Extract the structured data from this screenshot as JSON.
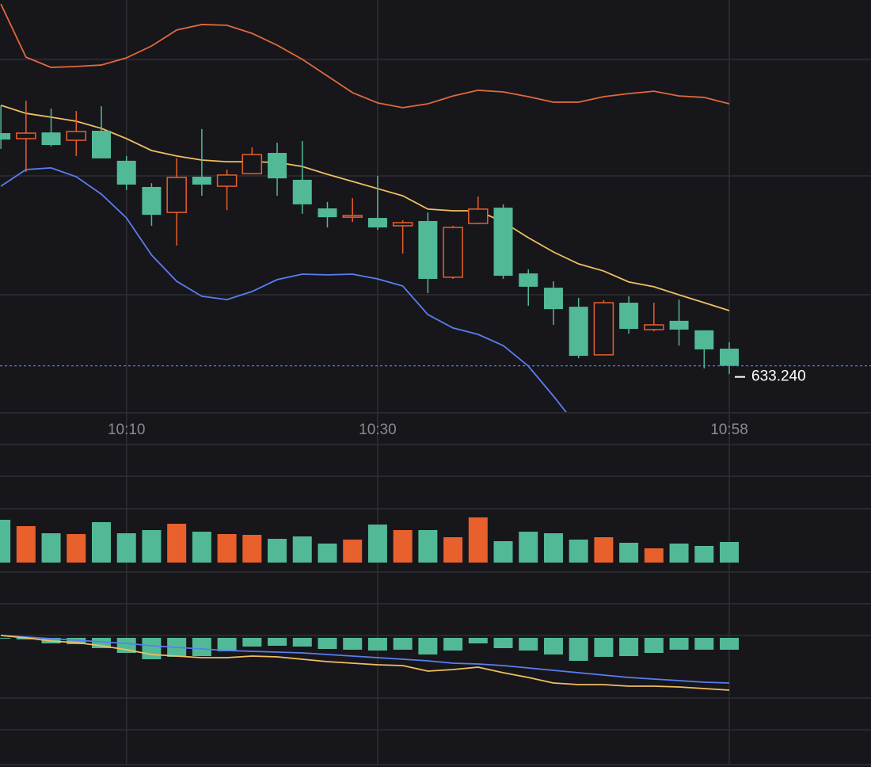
{
  "chart_data": [
    {
      "type": "candlestick",
      "categories": [
        null,
        null,
        null,
        null,
        null,
        "10:10",
        null,
        null,
        null,
        null,
        null,
        null,
        null,
        null,
        null,
        "10:30",
        null,
        null,
        null,
        null,
        null,
        null,
        null,
        null,
        null,
        null,
        null,
        null,
        null,
        "10:58"
      ],
      "open": [
        643.01,
        642.78,
        643.04,
        642.71,
        643.11,
        641.85,
        640.75,
        639.68,
        641.18,
        640.78,
        641.31,
        642.18,
        641.05,
        639.85,
        639.48,
        639.45,
        639.12,
        639.32,
        636.96,
        639.22,
        639.88,
        637.12,
        636.52,
        635.72,
        633.7,
        635.89,
        634.76,
        635.13,
        634.73,
        633.96
      ],
      "high": [
        644.17,
        644.37,
        644.04,
        643.94,
        644.14,
        642.05,
        640.91,
        641.95,
        643.18,
        641.48,
        642.41,
        642.61,
        642.68,
        640.12,
        640.28,
        641.21,
        639.35,
        639.68,
        639.12,
        640.35,
        640.02,
        637.29,
        636.79,
        636.09,
        635.99,
        636.16,
        635.89,
        636.02,
        634.73,
        634.23
      ],
      "low": [
        642.35,
        641.38,
        642.45,
        642.05,
        641.95,
        640.62,
        639.12,
        638.29,
        640.38,
        639.78,
        641.28,
        640.38,
        639.62,
        639.05,
        639.28,
        638.95,
        637.95,
        636.29,
        636.89,
        639.18,
        636.89,
        635.76,
        634.96,
        633.56,
        633.7,
        634.59,
        634.69,
        634.09,
        633.13,
        632.9
      ],
      "close": [
        642.74,
        643.01,
        642.51,
        643.08,
        641.95,
        640.85,
        639.58,
        641.15,
        640.85,
        641.25,
        642.11,
        641.11,
        640.02,
        639.48,
        639.55,
        639.05,
        639.25,
        636.89,
        639.05,
        639.82,
        637.02,
        636.56,
        635.62,
        633.66,
        635.89,
        634.79,
        634.96,
        634.76,
        633.93,
        633.24
      ],
      "up_color": "#e8602c",
      "down_color": "#52b996",
      "ylim": [
        631.3,
        648.6
      ],
      "series": [
        {
          "color": "#e0693c",
          "values": [
            648.43,
            646.2,
            645.77,
            645.81,
            645.87,
            646.17,
            646.67,
            647.34,
            647.57,
            647.54,
            647.2,
            646.7,
            646.11,
            645.41,
            644.71,
            644.28,
            644.08,
            644.24,
            644.57,
            644.81,
            644.74,
            644.54,
            644.31,
            644.31,
            644.54,
            644.67,
            644.77,
            644.57,
            644.51,
            644.24
          ]
        },
        {
          "color": "#efbf60",
          "values": [
            644.18,
            643.84,
            643.68,
            643.51,
            643.21,
            642.78,
            642.28,
            642.05,
            641.88,
            641.81,
            641.81,
            641.78,
            641.61,
            641.28,
            640.98,
            640.68,
            640.38,
            639.82,
            639.75,
            639.75,
            639.28,
            638.62,
            638.02,
            637.52,
            637.22,
            636.76,
            636.56,
            636.22,
            635.89,
            635.56
          ]
        },
        {
          "color": "#5a7ef0",
          "values": [
            640.78,
            641.48,
            641.55,
            641.18,
            640.45,
            639.45,
            637.89,
            636.79,
            636.16,
            636.02,
            636.36,
            636.86,
            637.09,
            637.06,
            637.09,
            636.89,
            636.59,
            635.39,
            634.83,
            634.56,
            634.09,
            633.23,
            631.97,
            630.63,
            null,
            null,
            null,
            null,
            null,
            null
          ]
        }
      ],
      "price_line": {
        "value": 633.24,
        "label": "633.240",
        "color": "#4a8cf0"
      },
      "grid": true
    },
    {
      "type": "volume",
      "values": [
        54,
        46,
        37,
        36,
        51,
        37,
        41,
        49,
        39,
        36,
        35,
        30,
        33,
        24,
        29,
        48,
        41,
        41,
        32,
        57,
        27,
        39,
        37,
        29,
        32,
        25,
        18,
        24,
        21,
        26
      ],
      "ylim": [
        0,
        110
      ]
    },
    {
      "type": "macd",
      "values": [
        -1,
        -2,
        -7,
        -8,
        -13,
        -19,
        -27,
        -24,
        -23,
        -17,
        -11,
        -10,
        -11,
        -14,
        -15,
        -16,
        -15,
        -21,
        -16,
        -7,
        -13,
        -16,
        -21,
        -29,
        -24,
        -23,
        -19,
        -15,
        -15,
        -15
      ],
      "up_color": "#e8602c",
      "down_color": "#52b996",
      "ylim": [
        -160,
        83
      ],
      "series": [
        {
          "color": "#5a7ef0",
          "values": [
            3,
            1,
            -1,
            -3,
            -5,
            -7,
            -10,
            -12,
            -14,
            -16,
            -17,
            -18,
            -19,
            -21,
            -23,
            -25,
            -27,
            -29,
            -32,
            -33,
            -35,
            -38,
            -41,
            -44,
            -47,
            -50,
            -52,
            -54,
            -56,
            -57
          ]
        },
        {
          "color": "#efbf60",
          "values": [
            3,
            0,
            -4,
            -6,
            -10,
            -15,
            -21,
            -23,
            -25,
            -25,
            -23,
            -24,
            -27,
            -30,
            -32,
            -34,
            -35,
            -42,
            -40,
            -37,
            -44,
            -50,
            -57,
            -59,
            -59,
            -61,
            -61,
            -62,
            -64,
            -66
          ]
        }
      ]
    }
  ]
}
